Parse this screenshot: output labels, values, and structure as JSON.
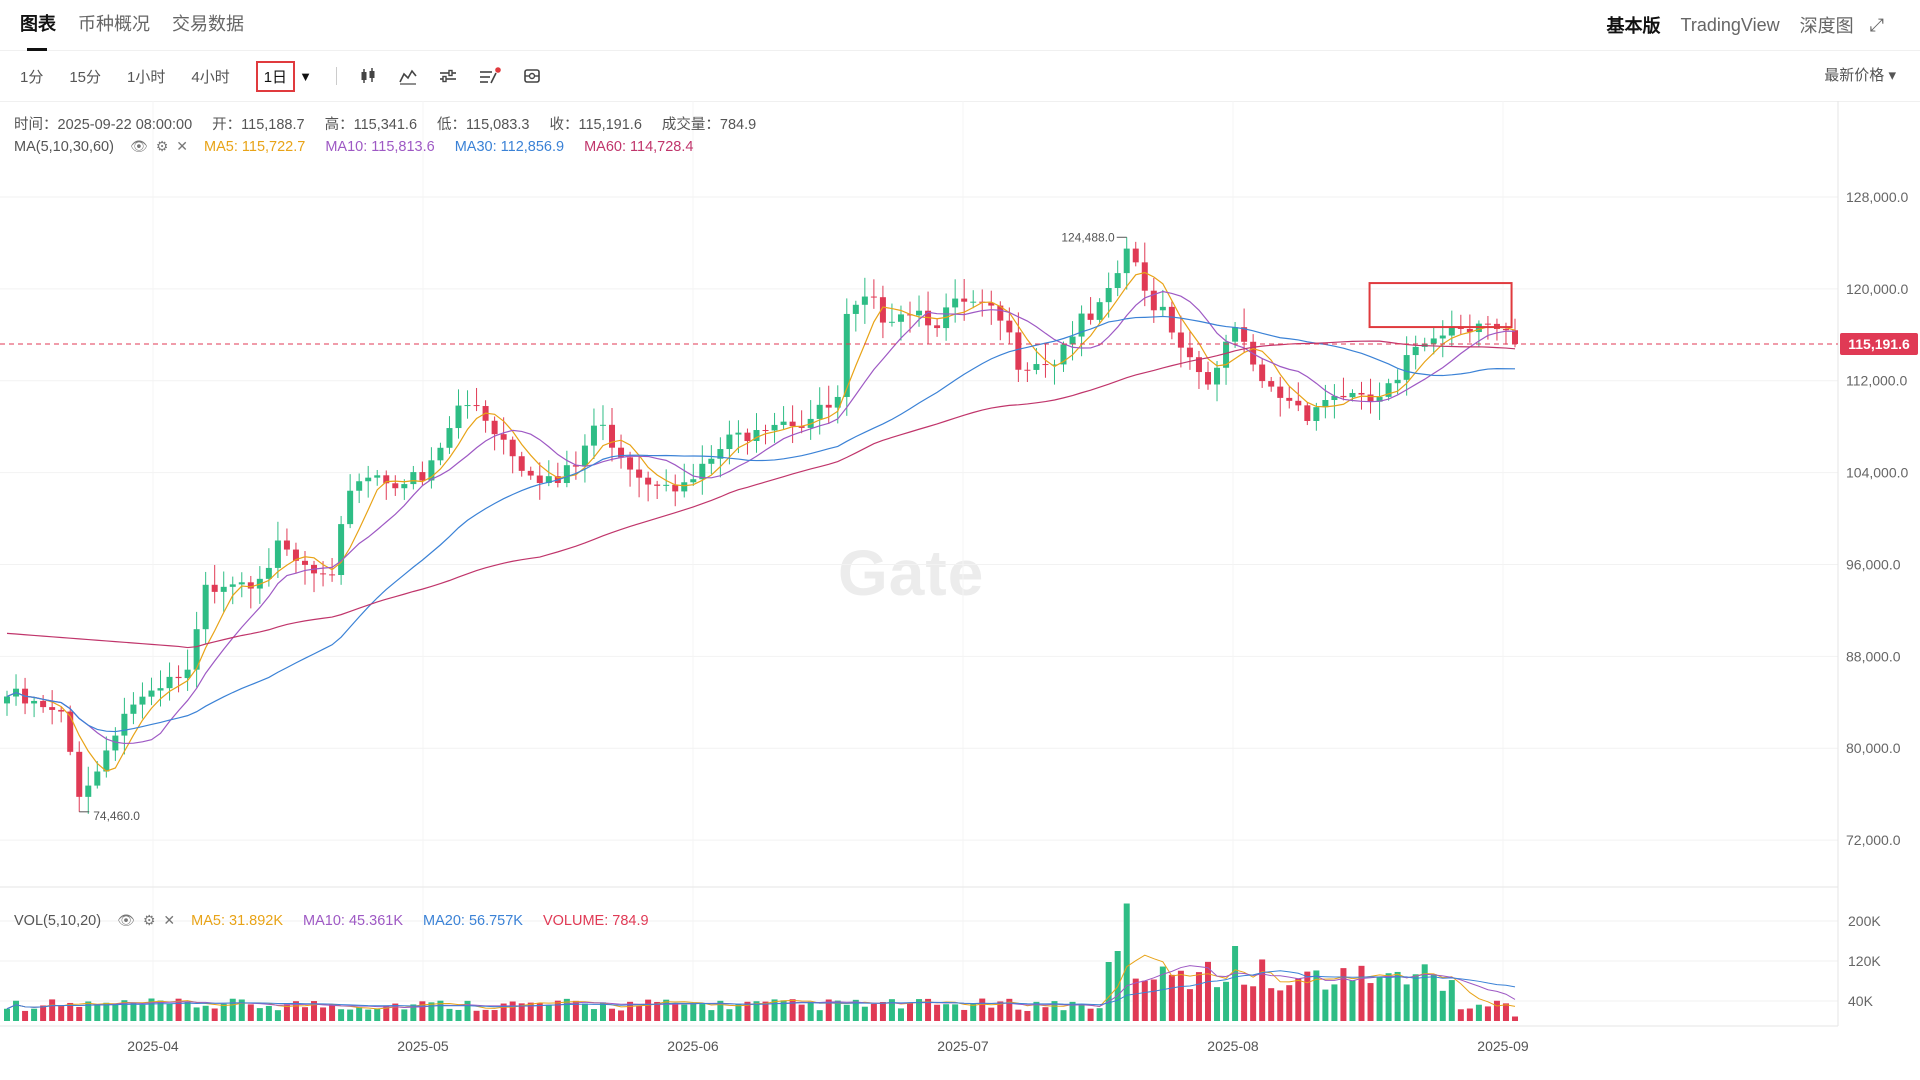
{
  "header": {
    "tabs": [
      {
        "label": "图表",
        "active": true
      },
      {
        "label": "币种概况",
        "active": false
      },
      {
        "label": "交易数据",
        "active": false
      }
    ],
    "modes": [
      {
        "label": "基本版",
        "active": true
      },
      {
        "label": "TradingView",
        "active": false
      },
      {
        "label": "深度图",
        "active": false
      }
    ]
  },
  "toolbar": {
    "intervals": [
      "1分",
      "15分",
      "1小时",
      "4小时"
    ],
    "active_interval": "1日",
    "price_type": "最新价格 ▾"
  },
  "info": {
    "time": "时间：2025-09-22 08:00:00",
    "open": "开：115,188.7",
    "high": "高：115,341.6",
    "low": "低：115,083.3",
    "close": "收：115,191.6",
    "volume": "成交量：784.9"
  },
  "ma_legend": {
    "label": "MA(5,10,30,60)",
    "ma5": "MA5: 115,722.7",
    "ma10": "MA10: 115,813.6",
    "ma30": "MA30: 112,856.9",
    "ma60": "MA60: 114,728.4"
  },
  "vol_legend": {
    "label": "VOL(5,10,20)",
    "ma5": "MA5: 31.892K",
    "ma10": "MA10: 45.361K",
    "ma20": "MA20: 56.757K",
    "volume": "VOLUME: 784.9"
  },
  "watermark": "Gate",
  "colors": {
    "up": "#2ebd85",
    "down": "#e03a55",
    "ma5": "#e8a317",
    "ma10": "#9e59c4",
    "ma30": "#3b82d6",
    "ma60": "#c0356b",
    "highlight": "#e03a3e"
  },
  "chart_data": {
    "type": "candlestick",
    "price_axis_ticks": [
      "128,000.0",
      "120,000.0",
      "112,000.0",
      "104,000.0",
      "96,000.0",
      "88,000.0",
      "80,000.0",
      "72,000.0"
    ],
    "price_axis_values": [
      128000,
      120000,
      112000,
      104000,
      96000,
      88000,
      80000,
      72000
    ],
    "volume_axis_ticks": [
      "200K",
      "120K",
      "40K"
    ],
    "volume_axis_values": [
      200000,
      120000,
      40000
    ],
    "x_labels": [
      "2025-04",
      "2025-05",
      "2025-06",
      "2025-07",
      "2025-08",
      "2025-09"
    ],
    "current_price": 115191.6,
    "current_price_label": "115,191.6",
    "high_marker": {
      "label": "124,488.0",
      "value": 124488
    },
    "low_marker": {
      "label": "74,460.0",
      "value": 74460
    },
    "close_waypoints": [
      [
        0,
        84500
      ],
      [
        3,
        83500
      ],
      [
        6,
        82500
      ],
      [
        8,
        76500
      ],
      [
        10,
        78000
      ],
      [
        12,
        82000
      ],
      [
        14,
        84000
      ],
      [
        16,
        84000
      ],
      [
        18,
        85500
      ],
      [
        20,
        86000
      ],
      [
        22,
        93500
      ],
      [
        24,
        95000
      ],
      [
        27,
        95000
      ],
      [
        30,
        97000
      ],
      [
        33,
        95500
      ],
      [
        36,
        94000
      ],
      [
        38,
        103000
      ],
      [
        40,
        104000
      ],
      [
        43,
        103500
      ],
      [
        46,
        103000
      ],
      [
        48,
        106000
      ],
      [
        50,
        109500
      ],
      [
        52,
        110000
      ],
      [
        55,
        107000
      ],
      [
        57,
        105000
      ],
      [
        59,
        104000
      ],
      [
        61,
        103000
      ],
      [
        63,
        104500
      ],
      [
        65,
        108000
      ],
      [
        67,
        107000
      ],
      [
        69,
        105000
      ],
      [
        71,
        103500
      ],
      [
        73,
        104000
      ],
      [
        75,
        102500
      ],
      [
        77,
        104000
      ],
      [
        79,
        106000
      ],
      [
        81,
        107000
      ],
      [
        83,
        108500
      ],
      [
        86,
        109000
      ],
      [
        88,
        108500
      ],
      [
        90,
        109000
      ],
      [
        92,
        110000
      ],
      [
        93,
        117000
      ],
      [
        95,
        118500
      ],
      [
        97,
        118000
      ],
      [
        100,
        118500
      ],
      [
        103,
        117500
      ],
      [
        106,
        118500
      ],
      [
        108,
        118000
      ],
      [
        110,
        117000
      ],
      [
        112,
        114000
      ],
      [
        114,
        114000
      ],
      [
        116,
        114000
      ],
      [
        118,
        116500
      ],
      [
        120,
        117000
      ],
      [
        122,
        119000
      ],
      [
        124,
        123500
      ],
      [
        126,
        119500
      ],
      [
        128,
        118500
      ],
      [
        130,
        115500
      ],
      [
        132,
        113000
      ],
      [
        134,
        112500
      ],
      [
        136,
        116500
      ],
      [
        138,
        112500
      ],
      [
        140,
        111000
      ],
      [
        142,
        110500
      ],
      [
        144,
        109500
      ],
      [
        146,
        110500
      ],
      [
        148,
        111000
      ],
      [
        150,
        109800
      ],
      [
        152,
        110500
      ],
      [
        154,
        111500
      ],
      [
        156,
        115000
      ],
      [
        158,
        116500
      ],
      [
        161,
        117000
      ],
      [
        163,
        117500
      ],
      [
        165,
        116000
      ],
      [
        167,
        115191.6
      ]
    ]
  }
}
